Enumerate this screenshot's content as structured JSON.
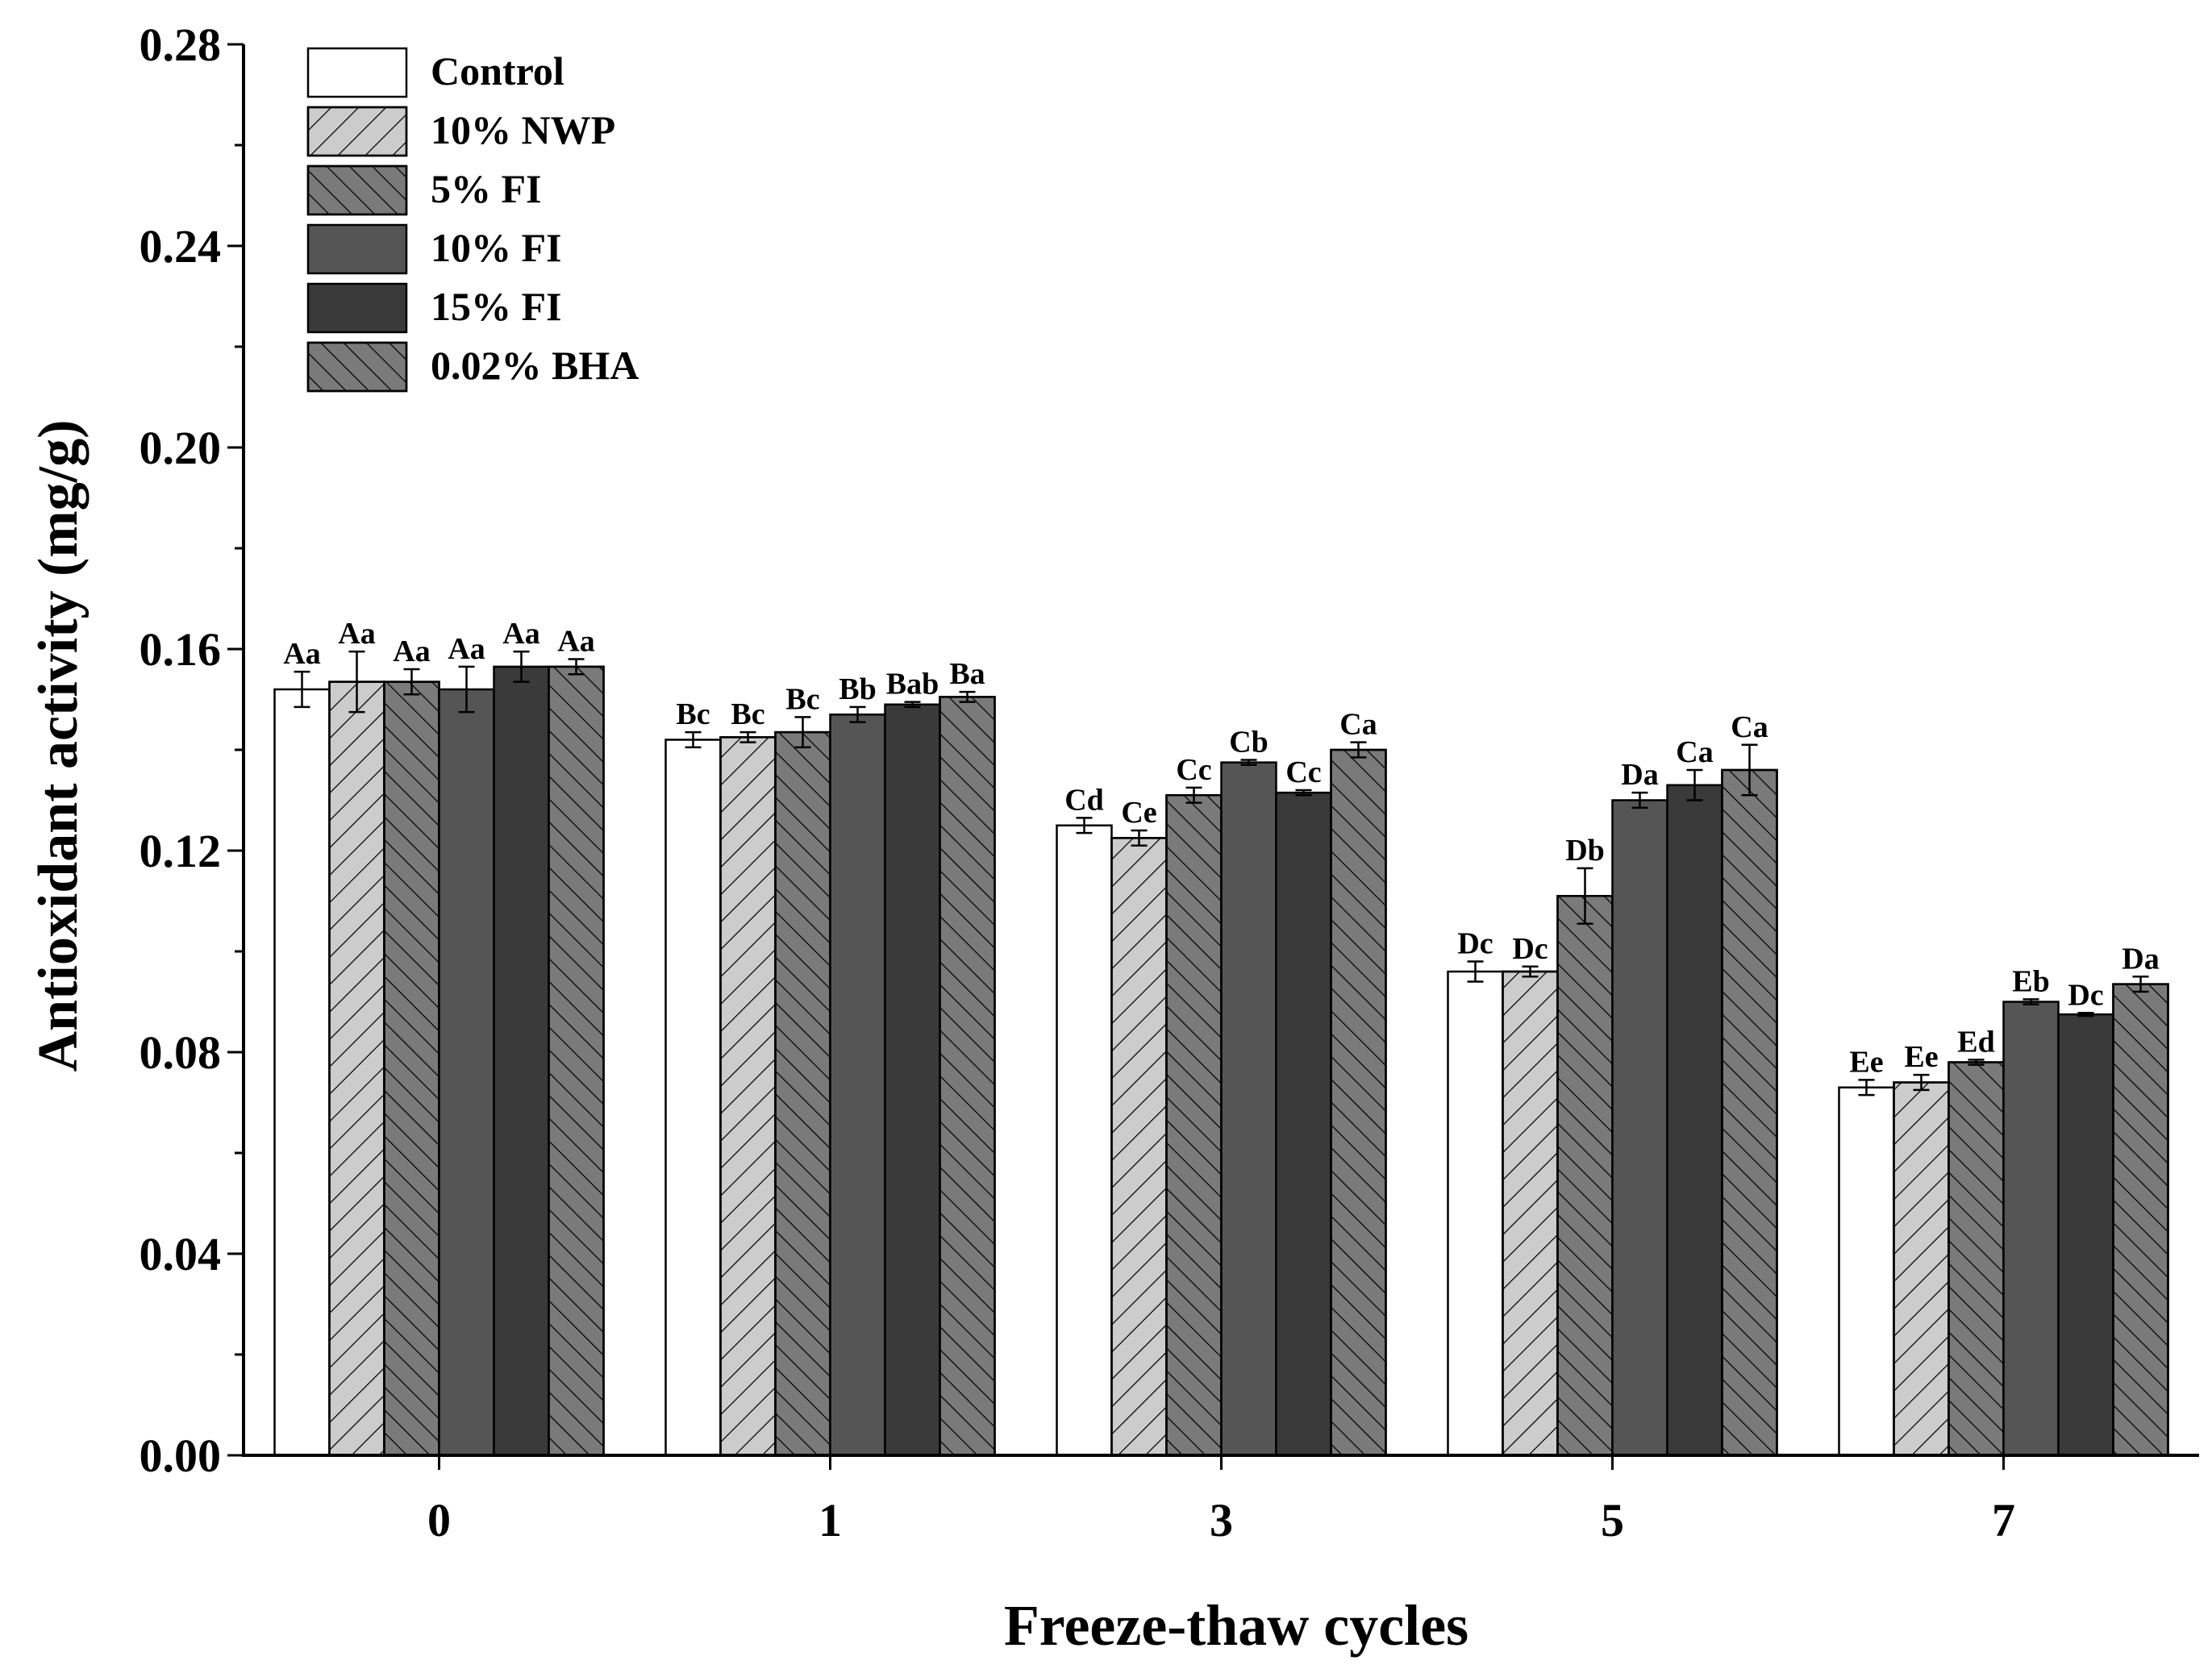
{
  "chart_data": {
    "type": "bar",
    "title": "",
    "xlabel": "Freeze-thaw cycles",
    "ylabel": "Antioxidant activity (mg/g)",
    "ylim": [
      0,
      0.28
    ],
    "yticks": [
      "0.00",
      "0.04",
      "0.08",
      "0.12",
      "0.16",
      "0.20",
      "0.24",
      "0.28"
    ],
    "grid": false,
    "legend_position": "top-left",
    "categories": [
      "0",
      "1",
      "3",
      "5",
      "7"
    ],
    "series": [
      {
        "name": "Control",
        "fill": "#ffffff",
        "hatch": "none",
        "values": [
          0.152,
          0.142,
          0.125,
          0.096,
          0.073
        ],
        "errors": [
          0.0035,
          0.0015,
          0.0015,
          0.002,
          0.0015
        ],
        "labels": [
          "Aa",
          "Bc",
          "Cd",
          "Dc",
          "Ee"
        ]
      },
      {
        "name": "10% NWP",
        "fill": "#cccccc",
        "hatch": "forward",
        "values": [
          0.1535,
          0.1425,
          0.1225,
          0.096,
          0.074
        ],
        "errors": [
          0.006,
          0.001,
          0.0015,
          0.001,
          0.0015
        ],
        "labels": [
          "Aa",
          "Bc",
          "Ce",
          "Dc",
          "Ee"
        ]
      },
      {
        "name": "5% FI",
        "fill": "#7a7a7a",
        "hatch": "back",
        "values": [
          0.1535,
          0.1435,
          0.131,
          0.111,
          0.078
        ],
        "errors": [
          0.0025,
          0.003,
          0.0015,
          0.0055,
          0.0005
        ],
        "labels": [
          "Aa",
          "Bc",
          "Cc",
          "Db",
          "Ed"
        ]
      },
      {
        "name": "10% FI",
        "fill": "#555555",
        "hatch": "none",
        "values": [
          0.152,
          0.147,
          0.1375,
          0.13,
          0.09
        ],
        "errors": [
          0.0045,
          0.0015,
          0.0005,
          0.0015,
          0.0005
        ],
        "labels": [
          "Aa",
          "Bb",
          "Cb",
          "Da",
          "Eb"
        ]
      },
      {
        "name": "15% FI",
        "fill": "#3a3a3a",
        "hatch": "none",
        "values": [
          0.1565,
          0.149,
          0.1315,
          0.133,
          0.0875
        ],
        "errors": [
          0.003,
          0.0005,
          0.0005,
          0.003,
          0.0003
        ],
        "labels": [
          "Aa",
          "Bab",
          "Cc",
          "Ca",
          "Dc"
        ]
      },
      {
        "name": "0.02% BHA",
        "fill": "#7a7a7a",
        "hatch": "back",
        "values": [
          0.1565,
          0.1505,
          0.14,
          0.136,
          0.0935
        ],
        "errors": [
          0.0015,
          0.001,
          0.0015,
          0.005,
          0.0015
        ],
        "labels": [
          "Aa",
          "Ba",
          "Ca",
          "Ca",
          "Da"
        ]
      }
    ]
  }
}
